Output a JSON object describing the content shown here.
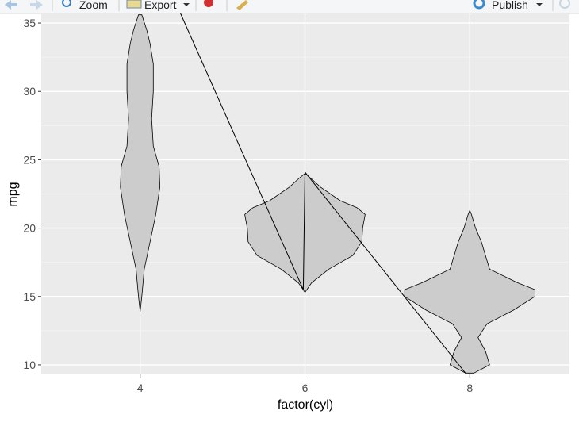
{
  "toolbar": {
    "zoom": "Zoom",
    "export": "Export",
    "publish": "Publish"
  },
  "chart_data": {
    "type": "violin",
    "x_label": "factor(cyl)",
    "y_label": "mpg",
    "xlim": [
      2.8,
      9.2
    ],
    "xticks": [
      4,
      6,
      8
    ],
    "ylim": [
      9.3,
      35.7
    ],
    "yticks": [
      10,
      15,
      20,
      25,
      30,
      35
    ],
    "minor_yticks": [
      12.5,
      17.5,
      22.5,
      27.5,
      32.5
    ],
    "grid": true,
    "fill": "#cccccc",
    "stroke": "#000000",
    "background": "#ebebeb",
    "violins": [
      {
        "x": 4,
        "y": [
          13.9,
          15,
          17,
          19,
          21,
          23,
          24.5,
          26,
          28,
          30,
          32,
          33.5,
          34.5,
          35.6
        ],
        "half_width": [
          0,
          0.02,
          0.05,
          0.12,
          0.19,
          0.24,
          0.23,
          0.16,
          0.14,
          0.16,
          0.16,
          0.12,
          0.08,
          0.02
        ]
      },
      {
        "x": 6,
        "y": [
          15.3,
          16,
          17,
          18,
          19,
          20,
          21,
          21.5,
          22,
          23,
          23.6,
          24
        ],
        "half_width": [
          0,
          0.08,
          0.29,
          0.58,
          0.69,
          0.7,
          0.73,
          0.63,
          0.43,
          0.19,
          0.08,
          0
        ]
      },
      {
        "x": 8,
        "y": [
          9.4,
          10,
          11,
          12,
          13,
          14,
          15,
          15.5,
          16,
          17,
          18,
          19,
          20,
          21,
          21.3
        ],
        "half_width": [
          0.05,
          0.24,
          0.19,
          0.1,
          0.21,
          0.53,
          0.79,
          0.79,
          0.58,
          0.24,
          0.19,
          0.14,
          0.07,
          0.02,
          0
        ]
      }
    ],
    "line": {
      "x": [
        4.49,
        5.98,
        6.0,
        7.96
      ],
      "y": [
        35.7,
        15.5,
        24.1,
        9.3
      ],
      "color": "#000000"
    }
  }
}
